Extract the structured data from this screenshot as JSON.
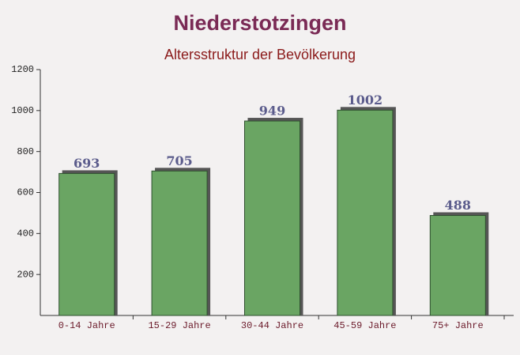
{
  "chart_data": {
    "type": "bar",
    "title": "Niederstotzingen",
    "subtitle": "Altersstruktur der Bevölkerung",
    "categories": [
      "0-14 Jahre",
      "15-29 Jahre",
      "30-44 Jahre",
      "45-59 Jahre",
      "75+ Jahre"
    ],
    "values": [
      693,
      705,
      949,
      1002,
      488
    ],
    "color": "#6aa563",
    "ylim": [
      0,
      1200
    ],
    "yticks": [
      200,
      400,
      600,
      800,
      1000,
      1200
    ]
  }
}
